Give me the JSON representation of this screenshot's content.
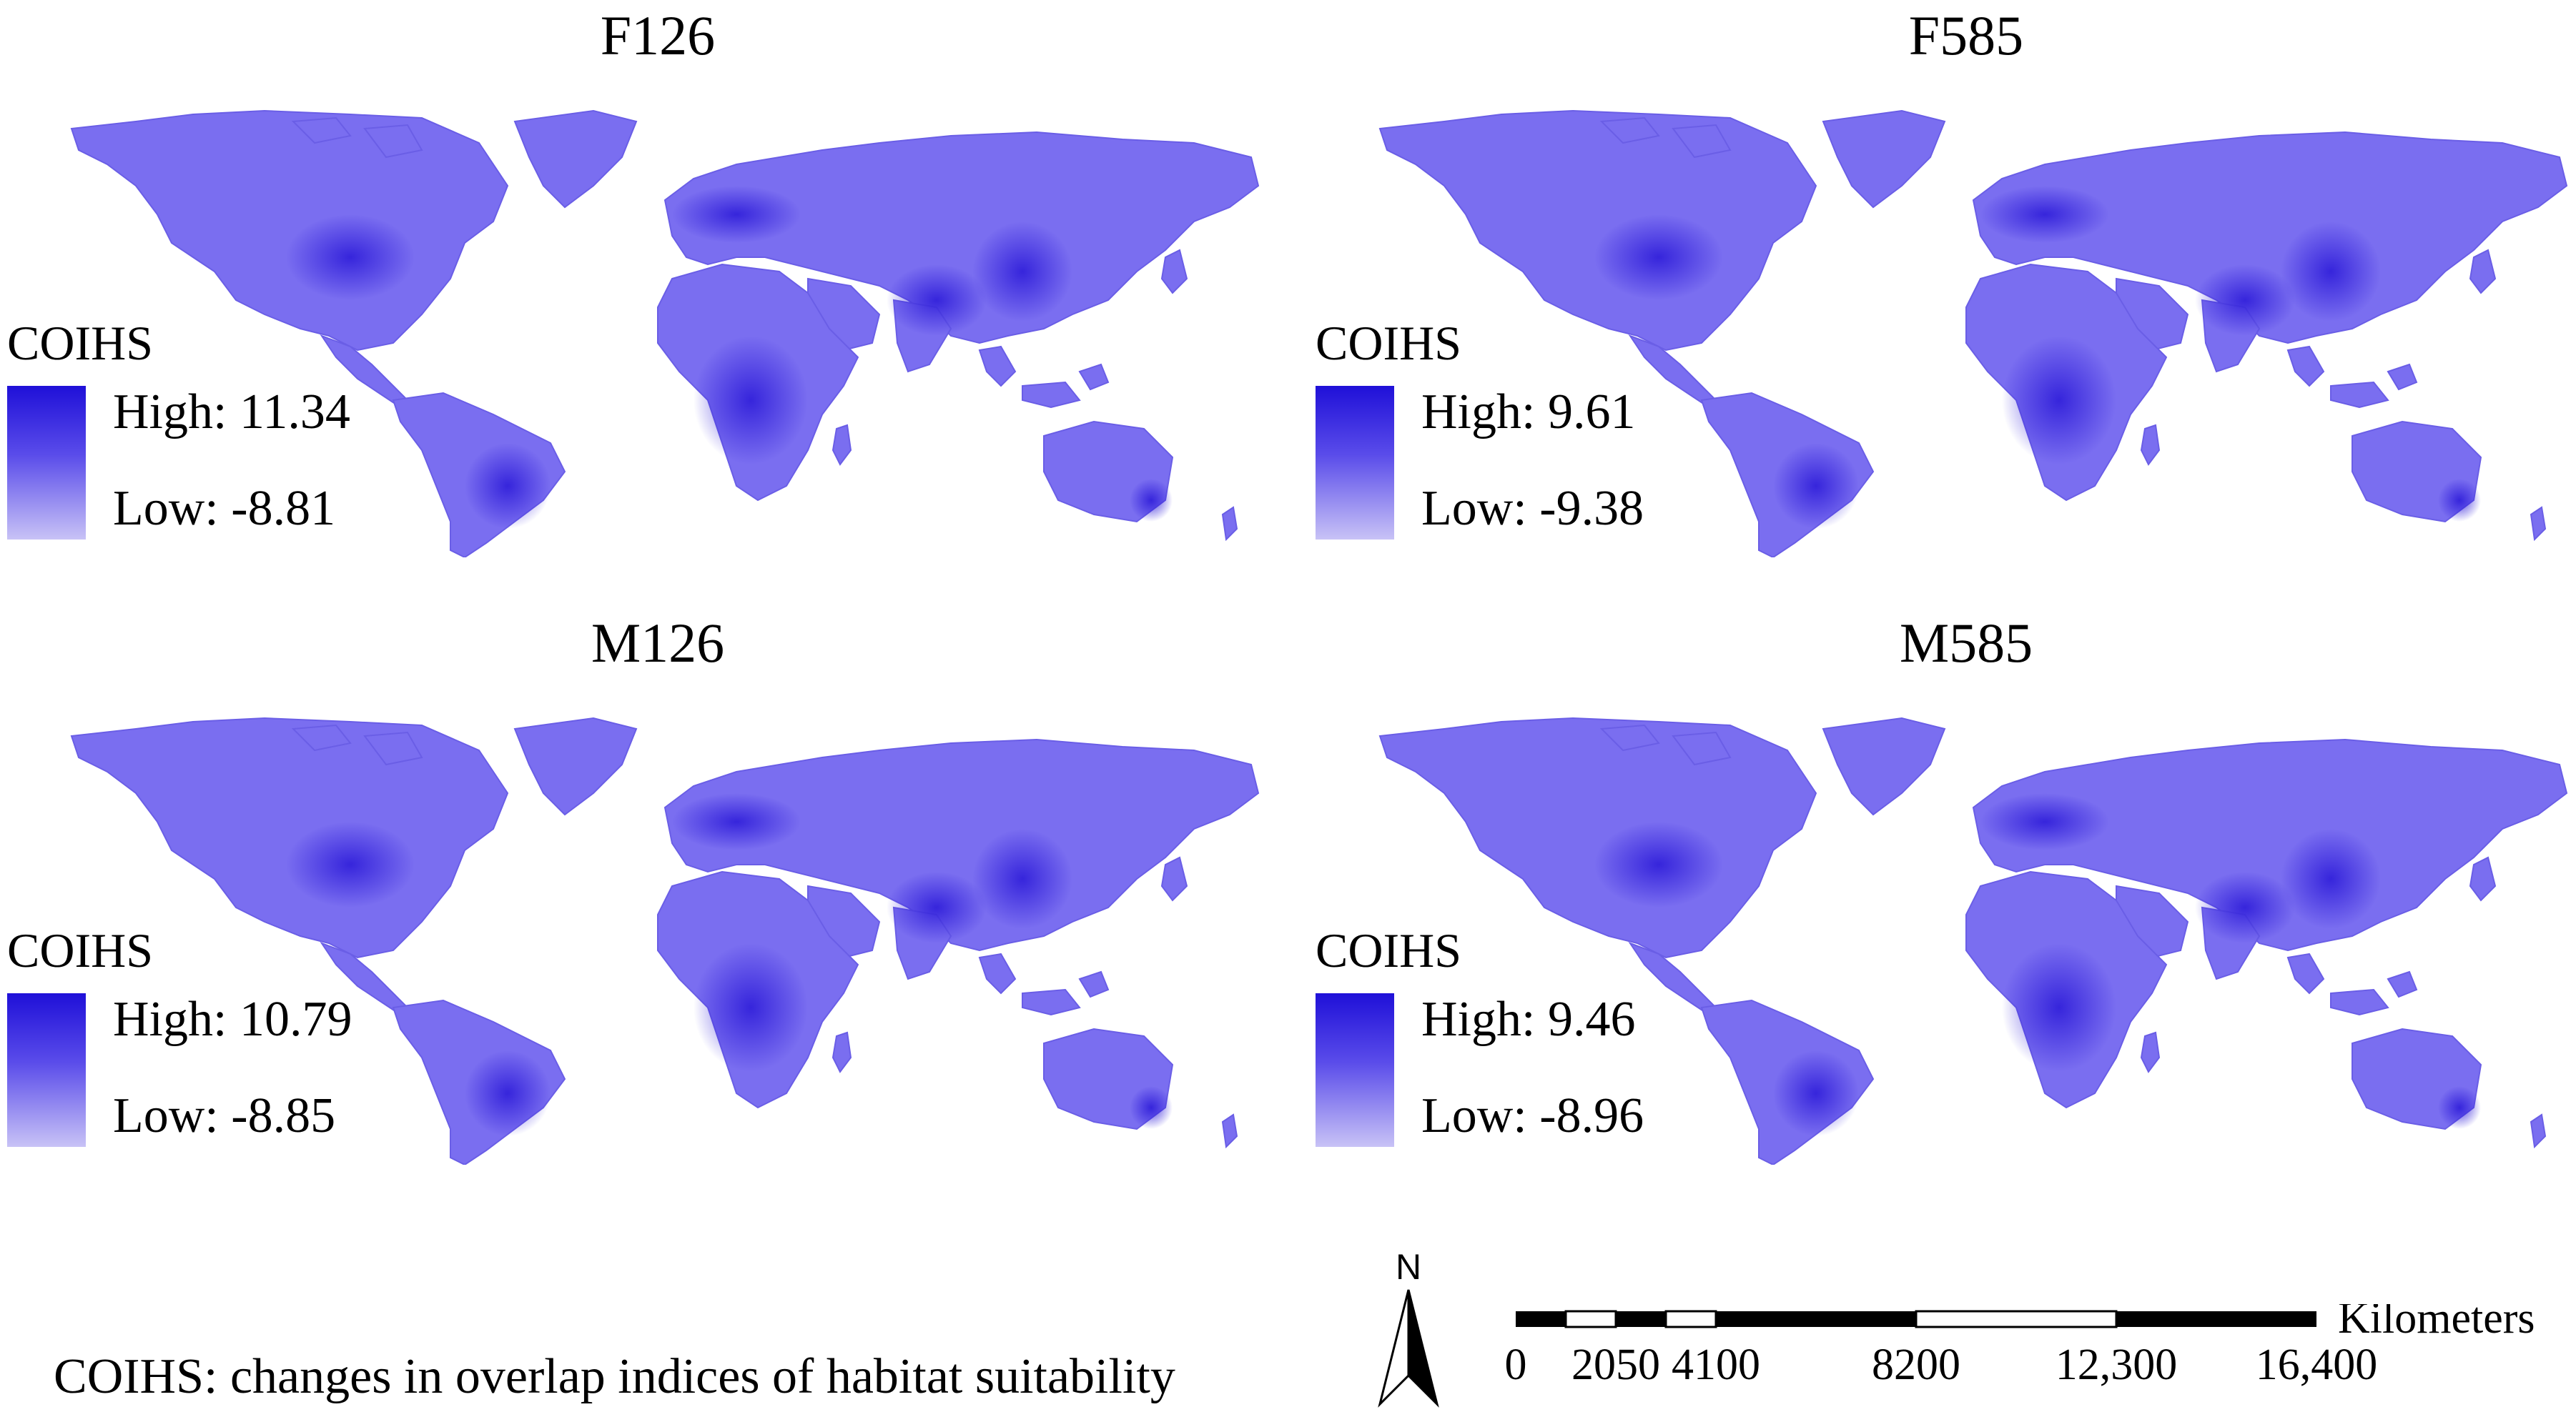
{
  "panels": [
    {
      "title": "F126",
      "legend": {
        "title": "COIHS",
        "high_label": "High: 11.34",
        "low_label": "Low: -8.81",
        "high": 11.34,
        "low": -8.81
      }
    },
    {
      "title": "F585",
      "legend": {
        "title": "COIHS",
        "high_label": "High: 9.61",
        "low_label": "Low: -9.38",
        "high": 9.61,
        "low": -9.38
      }
    },
    {
      "title": "M126",
      "legend": {
        "title": "COIHS",
        "high_label": "High: 10.79",
        "low_label": "Low: -8.85",
        "high": 10.79,
        "low": -8.85
      }
    },
    {
      "title": "M585",
      "legend": {
        "title": "COIHS",
        "high_label": "High: 9.46",
        "low_label": "Low: -8.96",
        "high": 9.46,
        "low": -8.96
      }
    }
  ],
  "colors": {
    "high": "#1f10d8",
    "mid": "#6b5ef0",
    "low": "#c8c2f6",
    "land": "#7a6ef0"
  },
  "footnote": "COIHS: changes in overlap indices of habitat suitability",
  "north_arrow": {
    "label": "N"
  },
  "scale_bar": {
    "unit": "Kilometers",
    "ticks": [
      "0",
      "2050",
      "4100",
      "8200",
      "12,300",
      "16,400"
    ]
  }
}
